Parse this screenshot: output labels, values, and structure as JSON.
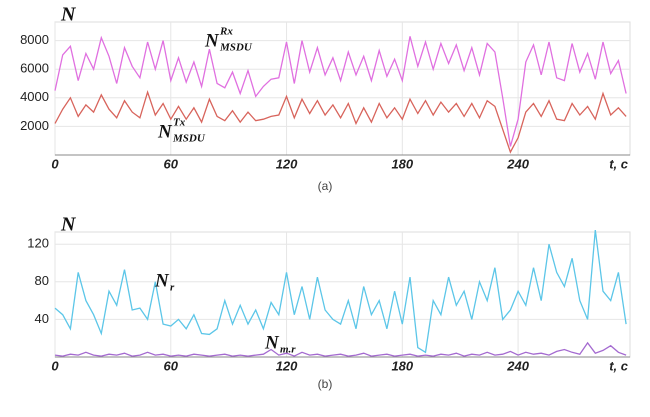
{
  "chart_data": [
    {
      "type": "line",
      "caption": "(a)",
      "y_label": "N",
      "x_label": "t, c",
      "xlim": [
        0,
        298
      ],
      "ylim": [
        0,
        9300
      ],
      "xticks": [
        0,
        60,
        120,
        180,
        240
      ],
      "yticks": [
        2000,
        4000,
        6000,
        8000
      ],
      "grid": true,
      "x": [
        0,
        4,
        8,
        12,
        16,
        20,
        24,
        28,
        32,
        36,
        40,
        44,
        48,
        52,
        56,
        60,
        64,
        68,
        72,
        76,
        80,
        84,
        88,
        92,
        96,
        100,
        104,
        108,
        112,
        116,
        120,
        124,
        128,
        132,
        136,
        140,
        144,
        148,
        152,
        156,
        160,
        164,
        168,
        172,
        176,
        180,
        184,
        188,
        192,
        196,
        200,
        204,
        208,
        212,
        216,
        220,
        224,
        228,
        232,
        236,
        240,
        244,
        248,
        252,
        256,
        260,
        264,
        268,
        272,
        276,
        280,
        284,
        288,
        292,
        296
      ],
      "series": [
        {
          "label": {
            "base": "N",
            "sup": "Rx",
            "sub": "MSDU"
          },
          "color": "#e070e0",
          "values": [
            4500,
            7000,
            7600,
            5200,
            7100,
            6000,
            8200,
            6900,
            5000,
            7500,
            6200,
            5400,
            7900,
            6000,
            8000,
            5200,
            6800,
            5100,
            6500,
            4800,
            7400,
            5000,
            4700,
            5800,
            4300,
            5900,
            4100,
            4800,
            5300,
            5400,
            7900,
            5000,
            8000,
            5800,
            7500,
            5600,
            6800,
            5200,
            7200,
            5600,
            6900,
            5200,
            7300,
            5500,
            6700,
            5200,
            8300,
            6200,
            7900,
            6000,
            7800,
            6400,
            7700,
            5900,
            7500,
            5600,
            7800,
            7200,
            4000,
            600,
            2500,
            6500,
            7700,
            5600,
            7900,
            5400,
            5200,
            7800,
            5800,
            7100,
            5300,
            7900,
            5700,
            6600,
            4300
          ]
        },
        {
          "label": {
            "base": "N",
            "sup": "Tx",
            "sub": "MSDU"
          },
          "color": "#d8645c",
          "values": [
            2200,
            3200,
            4000,
            2700,
            3500,
            3000,
            4200,
            3200,
            2600,
            3800,
            3000,
            2600,
            4400,
            2800,
            3600,
            2500,
            3400,
            2500,
            3300,
            2300,
            3900,
            2700,
            2400,
            3100,
            2300,
            3000,
            2400,
            2500,
            2700,
            2800,
            4100,
            2600,
            3900,
            2900,
            3800,
            2800,
            3500,
            2600,
            3600,
            2200,
            3300,
            2300,
            3600,
            2600,
            3300,
            2500,
            3900,
            2900,
            3800,
            2800,
            3700,
            3000,
            3600,
            2700,
            3600,
            2600,
            3800,
            3400,
            1800,
            200,
            1200,
            3000,
            3600,
            2700,
            3800,
            2500,
            2400,
            3600,
            2800,
            3400,
            2500,
            4300,
            2800,
            3300,
            2700
          ]
        }
      ]
    },
    {
      "type": "line",
      "caption": "(b)",
      "y_label": "N",
      "x_label": "t, c",
      "xlim": [
        0,
        298
      ],
      "ylim": [
        0,
        133
      ],
      "xticks": [
        0,
        60,
        120,
        180,
        240
      ],
      "yticks": [
        40,
        80,
        120
      ],
      "grid": true,
      "x": [
        0,
        4,
        8,
        12,
        16,
        20,
        24,
        28,
        32,
        36,
        40,
        44,
        48,
        52,
        56,
        60,
        64,
        68,
        72,
        76,
        80,
        84,
        88,
        92,
        96,
        100,
        104,
        108,
        112,
        116,
        120,
        124,
        128,
        132,
        136,
        140,
        144,
        148,
        152,
        156,
        160,
        164,
        168,
        172,
        176,
        180,
        184,
        188,
        192,
        196,
        200,
        204,
        208,
        212,
        216,
        220,
        224,
        228,
        232,
        236,
        240,
        244,
        248,
        252,
        256,
        260,
        264,
        268,
        272,
        276,
        280,
        284,
        288,
        292,
        296
      ],
      "series": [
        {
          "label": {
            "base": "N",
            "sub": "r"
          },
          "color": "#5cc6e8",
          "values": [
            52,
            45,
            30,
            90,
            60,
            45,
            25,
            70,
            55,
            93,
            50,
            52,
            40,
            80,
            35,
            33,
            40,
            30,
            45,
            25,
            24,
            30,
            60,
            35,
            55,
            35,
            50,
            30,
            58,
            45,
            90,
            45,
            75,
            40,
            85,
            50,
            40,
            35,
            60,
            30,
            75,
            45,
            60,
            30,
            70,
            35,
            85,
            10,
            5,
            60,
            45,
            85,
            55,
            70,
            40,
            80,
            60,
            95,
            40,
            50,
            70,
            55,
            95,
            60,
            120,
            90,
            75,
            105,
            60,
            40,
            135,
            70,
            60,
            90,
            35
          ]
        },
        {
          "label": {
            "base": "N",
            "sub": "m.r"
          },
          "color": "#a46ad0",
          "values": [
            2,
            1,
            3,
            2,
            5,
            2,
            1,
            3,
            2,
            4,
            1,
            2,
            5,
            2,
            3,
            1,
            2,
            1,
            3,
            2,
            1,
            2,
            3,
            1,
            2,
            1,
            2,
            3,
            8,
            2,
            4,
            1,
            5,
            2,
            3,
            1,
            2,
            3,
            1,
            2,
            4,
            1,
            2,
            3,
            1,
            2,
            3,
            1,
            2,
            1,
            3,
            2,
            4,
            1,
            3,
            2,
            5,
            2,
            3,
            6,
            2,
            5,
            3,
            4,
            2,
            6,
            8,
            5,
            3,
            15,
            4,
            7,
            12,
            5,
            2
          ]
        }
      ]
    }
  ]
}
